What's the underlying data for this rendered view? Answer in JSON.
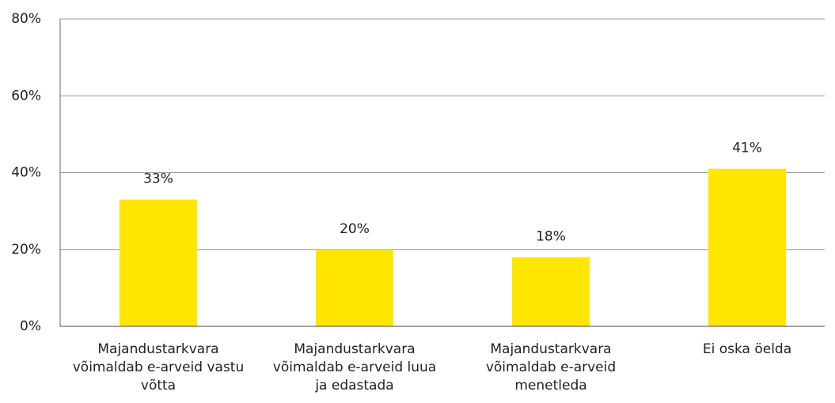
{
  "chart_data": {
    "type": "bar",
    "categories": [
      "Majandustarkvara võimaldab e-arveid vastu võtta",
      "Majandustarkvara võimaldab e-arveid luua ja edastada",
      "Majandustarkvara võimaldab e-arveid menetleda",
      "Ei oska öelda"
    ],
    "values": [
      33,
      20,
      18,
      41
    ],
    "value_labels": [
      "33%",
      "20%",
      "18%",
      "41%"
    ],
    "color": "#ffe600",
    "ylim": [
      0,
      80
    ],
    "yticks": [
      {
        "value": 0,
        "label": "0%"
      },
      {
        "value": 20,
        "label": "20%"
      },
      {
        "value": 40,
        "label": "40%"
      },
      {
        "value": 60,
        "label": "60%"
      },
      {
        "value": 80,
        "label": "80%"
      }
    ],
    "grid": true
  }
}
